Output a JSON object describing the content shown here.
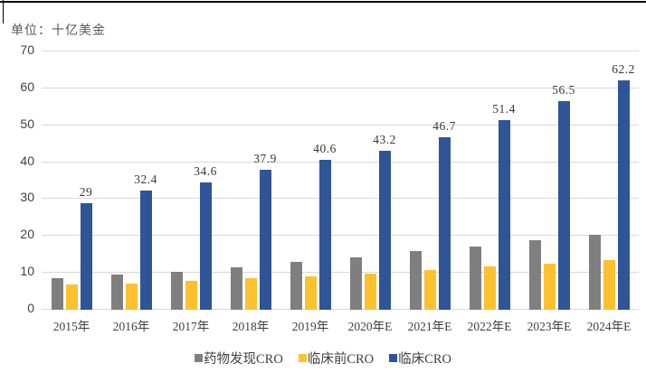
{
  "unit_label": "单位：十亿美金",
  "chart_data": {
    "type": "bar",
    "title": "",
    "ylabel": "十亿美金",
    "xlabel": "",
    "categories": [
      "2015年",
      "2016年",
      "2017年",
      "2018年",
      "2019年",
      "2020年E",
      "2021年E",
      "2022年E",
      "2023年E",
      "2024年E"
    ],
    "series": [
      {
        "name": "药物发现CRO",
        "color": "#7f7f7f",
        "values": [
          8.6,
          9.5,
          10.3,
          11.5,
          13.0,
          14.2,
          16.0,
          17.2,
          18.8,
          20.3
        ]
      },
      {
        "name": "临床前CRO",
        "color": "#fcc12f",
        "values": [
          6.9,
          7.2,
          7.8,
          8.5,
          9.1,
          9.8,
          10.8,
          11.8,
          12.5,
          13.4
        ]
      },
      {
        "name": "临床CRO",
        "color": "#2f5597",
        "values": [
          29,
          32.4,
          34.6,
          37.9,
          40.6,
          43.2,
          46.7,
          51.4,
          56.5,
          62.2
        ],
        "data_labels": [
          "29",
          "32.4",
          "34.6",
          "37.9",
          "40.6",
          "43.2",
          "46.7",
          "51.4",
          "56.5",
          "62.2"
        ]
      }
    ],
    "ylim": [
      0,
      70
    ],
    "yticks": [
      0,
      10,
      20,
      30,
      40,
      50,
      60,
      70
    ],
    "grid": true,
    "legend_position": "bottom"
  },
  "colors": {
    "gridline": "#d9d9d9",
    "axis_text": "#404040",
    "data_label_text": "#383838",
    "unit_text": "#595959",
    "border": "#000000"
  }
}
